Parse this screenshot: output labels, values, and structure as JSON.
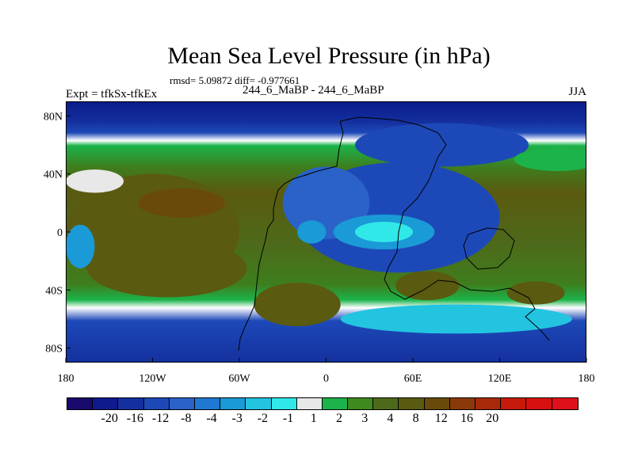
{
  "chart_data": {
    "type": "heatmap",
    "title": "Mean Sea Level Pressure (in hPa)",
    "stats": "rmsd= 5.09872 diff= -0.977661",
    "left_label": "Expt = tfkSx-tfkEx",
    "subtitle": "244_6_MaBP - 244_6_MaBP",
    "season": "JJA",
    "xlim": [
      -180,
      180
    ],
    "ylim": [
      -90,
      90
    ],
    "x_ticks": [
      {
        "value": -180,
        "label": "180"
      },
      {
        "value": -120,
        "label": "120W"
      },
      {
        "value": -60,
        "label": "60W"
      },
      {
        "value": 0,
        "label": "0"
      },
      {
        "value": 60,
        "label": "60E"
      },
      {
        "value": 120,
        "label": "120E"
      },
      {
        "value": 180,
        "label": "180"
      }
    ],
    "y_ticks": [
      {
        "value": 80,
        "label": "80N"
      },
      {
        "value": 40,
        "label": "40N"
      },
      {
        "value": 0,
        "label": "0"
      },
      {
        "value": -40,
        "label": "40S"
      },
      {
        "value": -80,
        "label": "80S"
      }
    ],
    "colorbar": {
      "colors": [
        "#1a0a6e",
        "#0f1a8c",
        "#14309e",
        "#1d49b8",
        "#2a62c8",
        "#1f78d1",
        "#1a9ad6",
        "#22c4e0",
        "#31e8e8",
        "#e8e8e8",
        "#1bb34a",
        "#3e8a1e",
        "#4d6a1a",
        "#5a5a10",
        "#6a4a0a",
        "#8a3a0a",
        "#a82a0a",
        "#c81a0a",
        "#d81010",
        "#e0101a"
      ],
      "labels": [
        "-20",
        "-16",
        "-12",
        "-8",
        "-4",
        "-3",
        "-2",
        "-1",
        "1",
        "2",
        "3",
        "4",
        "8",
        "12",
        "16",
        "20"
      ]
    },
    "blobs": [
      {
        "lon": -120,
        "lat": 0,
        "rlon": 60,
        "rlat": 40,
        "color": "#5a5a10"
      },
      {
        "lon": -100,
        "lat": 20,
        "rlon": 30,
        "rlat": 10,
        "color": "#6a4a0a"
      },
      {
        "lon": -110,
        "lat": -25,
        "rlon": 55,
        "rlat": 20,
        "color": "#5a5a10"
      },
      {
        "lon": -20,
        "lat": -50,
        "rlon": 30,
        "rlat": 15,
        "color": "#5a5a10"
      },
      {
        "lon": 70,
        "lat": -37,
        "rlon": 22,
        "rlat": 10,
        "color": "#5a5a10"
      },
      {
        "lon": 145,
        "lat": -42,
        "rlon": 20,
        "rlat": 8,
        "color": "#5a5a10"
      },
      {
        "lon": 50,
        "lat": 10,
        "rlon": 70,
        "rlat": 38,
        "color": "#1d49b8"
      },
      {
        "lon": 0,
        "lat": 20,
        "rlon": 30,
        "rlat": 25,
        "color": "#2a62c8"
      },
      {
        "lon": 40,
        "lat": 0,
        "rlon": 35,
        "rlat": 12,
        "color": "#1a9ad6"
      },
      {
        "lon": 40,
        "lat": 0,
        "rlon": 20,
        "rlat": 7,
        "color": "#31e8e8"
      },
      {
        "lon": -10,
        "lat": 0,
        "rlon": 10,
        "rlat": 8,
        "color": "#1a9ad6"
      },
      {
        "lon": 80,
        "lat": 60,
        "rlon": 60,
        "rlat": 15,
        "color": "#1d49b8"
      },
      {
        "lon": 160,
        "lat": 50,
        "rlon": 30,
        "rlat": 8,
        "color": "#1bb34a"
      },
      {
        "lon": -160,
        "lat": 35,
        "rlon": 20,
        "rlat": 8,
        "color": "#e8e8e8"
      },
      {
        "lon": -170,
        "lat": -10,
        "rlon": 10,
        "rlat": 15,
        "color": "#1a9ad6"
      },
      {
        "lon": 90,
        "lat": -60,
        "rlon": 80,
        "rlat": 10,
        "color": "#22c4e0"
      }
    ]
  }
}
